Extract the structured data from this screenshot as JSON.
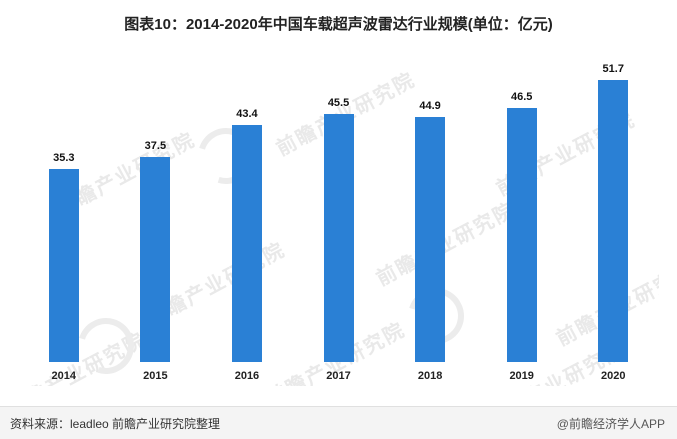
{
  "title": "图表10：2014-2020年中国车载超声波雷达行业规模(单位：亿元)",
  "chart_data": {
    "type": "bar",
    "categories": [
      "2014",
      "2015",
      "2016",
      "2017",
      "2018",
      "2019",
      "2020"
    ],
    "values": [
      35.3,
      37.5,
      43.4,
      45.5,
      44.9,
      46.5,
      51.7
    ],
    "title": "图表10：2014-2020年中国车载超声波雷达行业规模(单位：亿元)",
    "xlabel": "",
    "ylabel": "",
    "ylim": [
      0,
      55
    ],
    "grid": false,
    "legend": false,
    "bar_color": "#2a80d5"
  },
  "footer": {
    "source": "资料来源：leadleo 前瞻产业研究院整理",
    "credit": "@前瞻经济学人APP"
  },
  "watermark": {
    "text": "前瞻产业研究院",
    "color": "#e9e9e9"
  }
}
